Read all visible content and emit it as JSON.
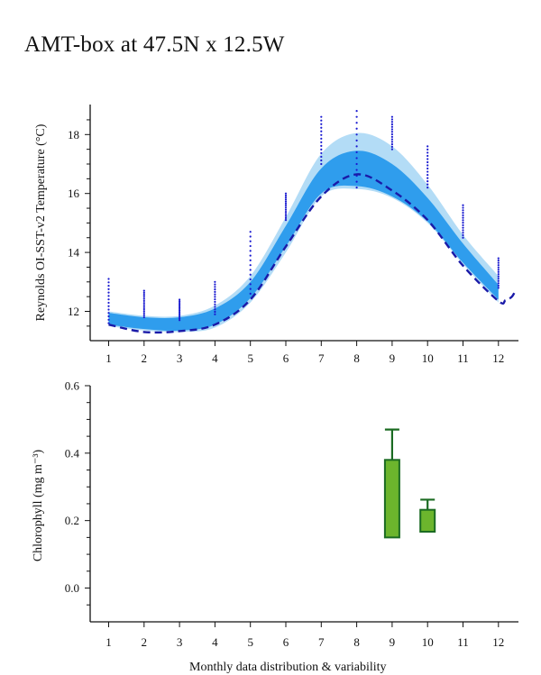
{
  "title": "AMT-box at 47.5N x 12.5W",
  "footer": "Monthly data distribution & variability",
  "colors": {
    "outer_band": "#b3dcf6",
    "inner_band": "#2f9ded",
    "mean_line": "#1a1aa8",
    "dots": "#1a1ad0",
    "bar_fill": "#6cb52d",
    "bar_stroke": "#1b6b22",
    "axis": "#111111"
  },
  "chart_data": [
    {
      "type": "area",
      "ylabel": "Reynolds OI-SST-v2 Temperature (°C)",
      "xlabel": "",
      "x_ticks": [
        1,
        2,
        3,
        4,
        5,
        6,
        7,
        8,
        9,
        10,
        11,
        12
      ],
      "y_ticks": [
        12,
        14,
        16,
        18
      ],
      "xlim": [
        0.5,
        12.55
      ],
      "ylim": [
        11.0,
        19.0
      ],
      "months": [
        1,
        2,
        3,
        4,
        5,
        6,
        7,
        8,
        9,
        10,
        11,
        12
      ],
      "outer_lower": [
        11.5,
        11.35,
        11.3,
        11.45,
        12.3,
        14.0,
        15.9,
        16.15,
        15.85,
        15.0,
        13.6,
        12.3
      ],
      "outer_upper": [
        12.0,
        11.85,
        11.85,
        12.2,
        13.2,
        15.2,
        17.35,
        18.05,
        17.6,
        16.3,
        14.6,
        13.2
      ],
      "inner_lower": [
        11.55,
        11.4,
        11.35,
        11.55,
        12.45,
        14.2,
        16.0,
        16.25,
        15.9,
        15.05,
        13.65,
        12.4
      ],
      "inner_upper": [
        11.95,
        11.8,
        11.8,
        12.1,
        13.0,
        14.9,
        16.85,
        17.45,
        17.0,
        15.85,
        14.3,
        12.9
      ],
      "mean": [
        11.55,
        11.3,
        11.33,
        11.55,
        12.4,
        14.2,
        15.9,
        16.65,
        16.1,
        15.1,
        13.55,
        12.35
      ],
      "mean_tail": [
        [
          12.2,
          12.38
        ],
        [
          12.38,
          12.5
        ],
        [
          12.5,
          12.75
        ]
      ],
      "dot_ranges": [
        [
          11.6,
          13.1
        ],
        [
          11.8,
          12.7
        ],
        [
          11.7,
          12.4
        ],
        [
          11.9,
          13.0
        ],
        [
          12.6,
          14.7
        ],
        [
          15.1,
          16.0
        ],
        [
          17.0,
          18.6
        ],
        [
          16.2,
          18.8
        ],
        [
          17.5,
          18.6
        ],
        [
          16.2,
          17.6
        ],
        [
          14.5,
          15.6
        ],
        [
          12.8,
          13.8
        ]
      ]
    },
    {
      "type": "bar",
      "ylabel": "Chlorophyll (mg m⁻³)",
      "xlabel": "Monthly data distribution & variability",
      "x_ticks": [
        1,
        2,
        3,
        4,
        5,
        6,
        7,
        8,
        9,
        10,
        11,
        12
      ],
      "y_ticks": [
        "0.0",
        "0.2",
        "0.4",
        "0.6"
      ],
      "y_tick_values": [
        0.0,
        0.2,
        0.4,
        0.6
      ],
      "xlim": [
        0.5,
        12.55
      ],
      "ylim": [
        -0.1,
        0.6
      ],
      "boxes": [
        {
          "month": 9,
          "low": 0.15,
          "high": 0.38,
          "whisker": 0.47
        },
        {
          "month": 10,
          "low": 0.167,
          "high": 0.232,
          "whisker": 0.262
        }
      ]
    }
  ]
}
